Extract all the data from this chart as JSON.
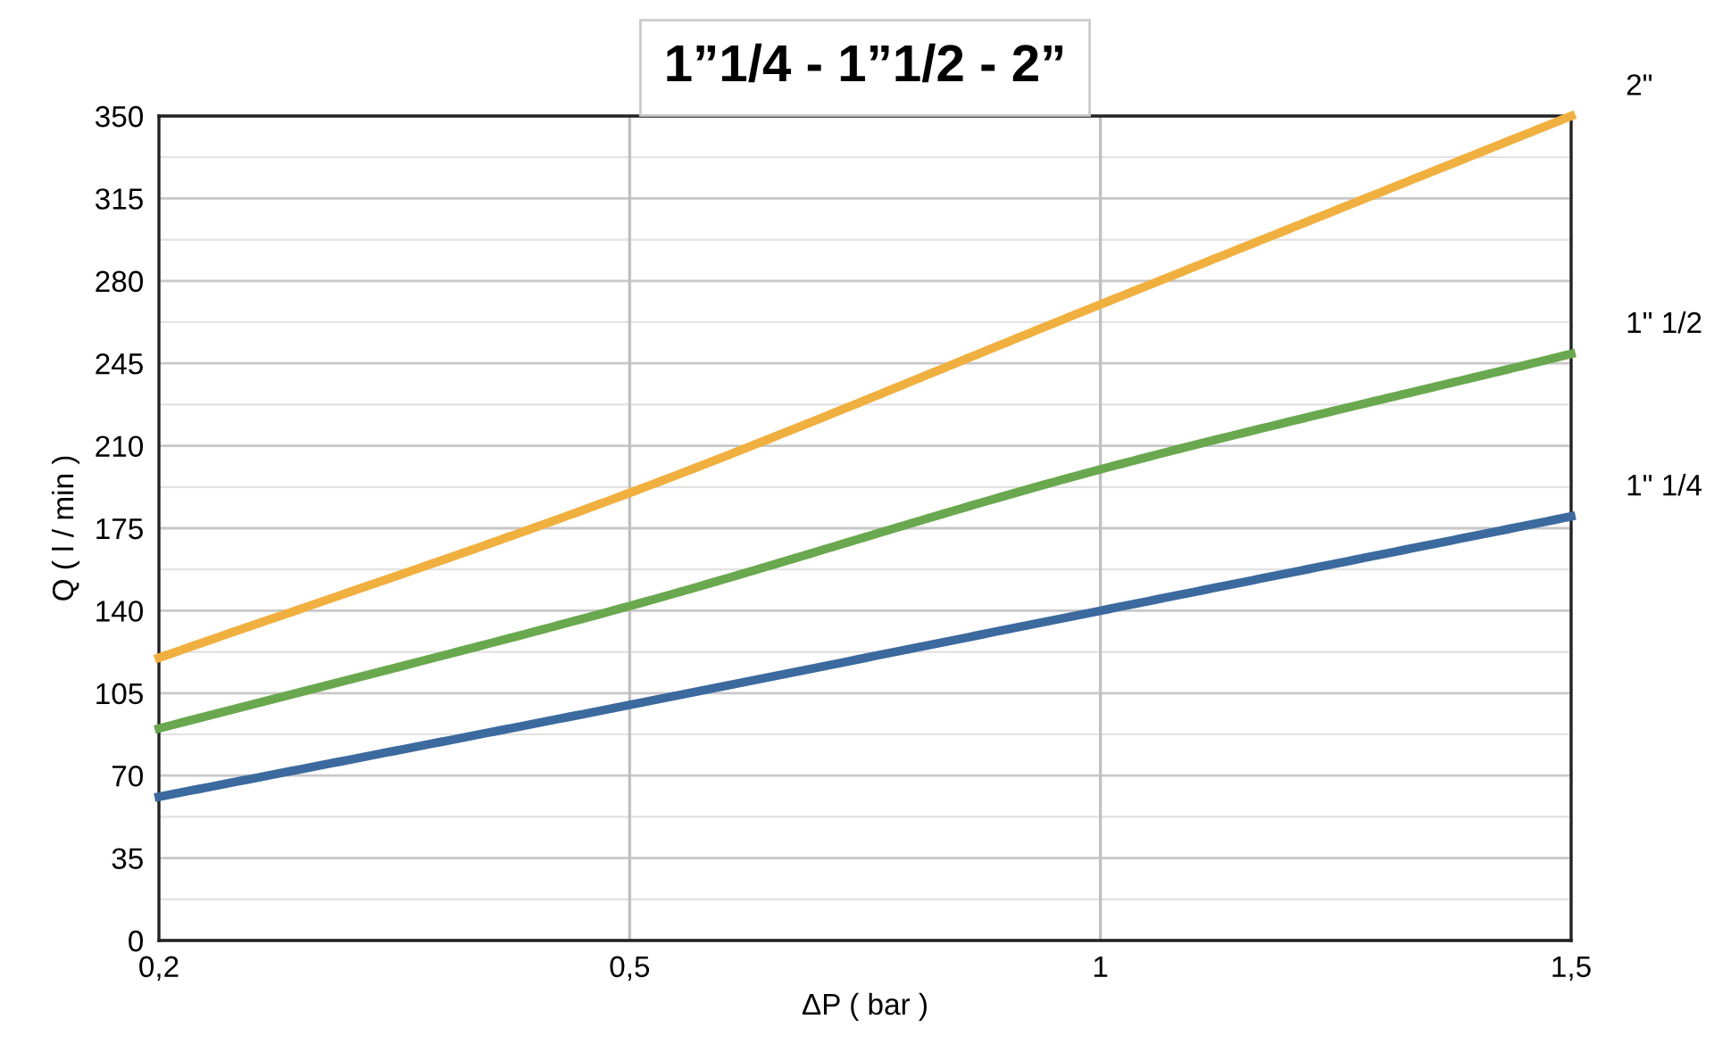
{
  "chart_data": {
    "type": "line",
    "title": "1”1/4 - 1”1/2 - 2”",
    "xlabel": "ΔP ( bar )",
    "ylabel": "Q ( l / min )",
    "categories": [
      "0,2",
      "0,5",
      "1",
      "1,5"
    ],
    "series": [
      {
        "name": "1\" 1/4",
        "color": "#3c6a9e",
        "values": [
          61,
          100,
          140,
          180
        ]
      },
      {
        "name": "1\" 1/2",
        "color": "#6aa84f",
        "values": [
          90,
          142,
          200,
          249
        ]
      },
      {
        "name": "2\"",
        "color": "#f0b040",
        "values": [
          120,
          190,
          270,
          350
        ]
      }
    ],
    "ylim": [
      0,
      350
    ],
    "yticks": [
      0,
      35,
      70,
      105,
      140,
      175,
      210,
      245,
      280,
      315,
      350
    ],
    "grid": true,
    "legend": false,
    "marker": "none",
    "line_style": "solid"
  }
}
